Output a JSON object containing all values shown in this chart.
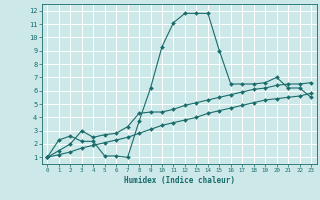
{
  "bg_color": "#cce8e8",
  "line_color": "#1a6b6b",
  "grid_color": "#ffffff",
  "xlabel": "Humidex (Indice chaleur)",
  "xlim": [
    -0.5,
    23.5
  ],
  "ylim": [
    0.5,
    12.5
  ],
  "xticks": [
    0,
    1,
    2,
    3,
    4,
    5,
    6,
    7,
    8,
    9,
    10,
    11,
    12,
    13,
    14,
    15,
    16,
    17,
    18,
    19,
    20,
    21,
    22,
    23
  ],
  "yticks": [
    1,
    2,
    3,
    4,
    5,
    6,
    7,
    8,
    9,
    10,
    11,
    12
  ],
  "series1_x": [
    0,
    1,
    2,
    3,
    4,
    5,
    6,
    7,
    8,
    9,
    10,
    11,
    12,
    13,
    14,
    15,
    16,
    17,
    18,
    19,
    20,
    21,
    22,
    23
  ],
  "series1_y": [
    1.0,
    2.3,
    2.6,
    2.2,
    2.2,
    1.1,
    1.1,
    1.0,
    3.7,
    6.2,
    9.3,
    11.1,
    11.8,
    11.8,
    11.8,
    9.0,
    6.5,
    6.5,
    6.5,
    6.6,
    7.0,
    6.2,
    6.2,
    5.5
  ],
  "series2_x": [
    0,
    1,
    2,
    3,
    4,
    5,
    6,
    7,
    8,
    9,
    10,
    11,
    12,
    13,
    14,
    15,
    16,
    17,
    18,
    19,
    20,
    21,
    22,
    23
  ],
  "series2_y": [
    1.0,
    1.5,
    2.0,
    3.0,
    2.5,
    2.7,
    2.8,
    3.3,
    4.3,
    4.4,
    4.4,
    4.6,
    4.9,
    5.1,
    5.3,
    5.5,
    5.7,
    5.9,
    6.1,
    6.2,
    6.4,
    6.5,
    6.5,
    6.6
  ],
  "series3_x": [
    0,
    1,
    2,
    3,
    4,
    5,
    6,
    7,
    8,
    9,
    10,
    11,
    12,
    13,
    14,
    15,
    16,
    17,
    18,
    19,
    20,
    21,
    22,
    23
  ],
  "series3_y": [
    1.0,
    1.2,
    1.4,
    1.7,
    1.9,
    2.1,
    2.3,
    2.5,
    2.8,
    3.1,
    3.4,
    3.6,
    3.8,
    4.0,
    4.3,
    4.5,
    4.7,
    4.9,
    5.1,
    5.3,
    5.4,
    5.5,
    5.6,
    5.8
  ]
}
